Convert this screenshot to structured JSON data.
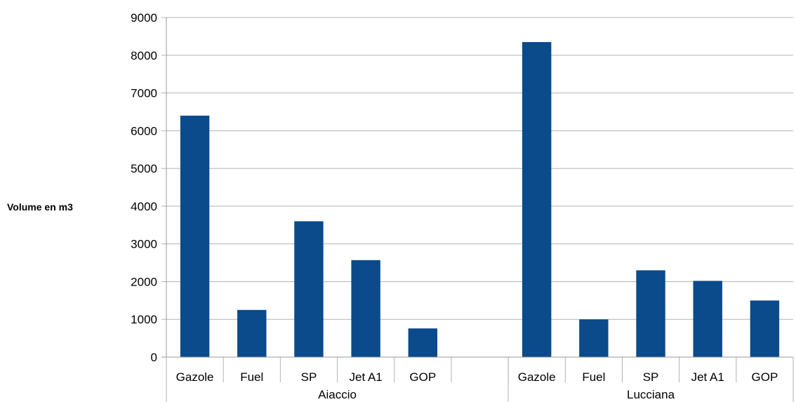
{
  "chart_data": {
    "type": "bar",
    "ylabel": "Volume en m3",
    "ylim": [
      0,
      9000
    ],
    "yticks": [
      0,
      1000,
      2000,
      3000,
      4000,
      5000,
      6000,
      7000,
      8000,
      9000
    ],
    "grid": true,
    "bar_color": "#0b4a8b",
    "groups": [
      {
        "name": "Aiaccio",
        "categories": [
          "Gazole",
          "Fuel",
          "SP",
          "Jet A1",
          "GOP",
          ""
        ],
        "values": [
          6400,
          1250,
          3600,
          2570,
          760,
          null
        ]
      },
      {
        "name": "Lucciana",
        "categories": [
          "Gazole",
          "Fuel",
          "SP",
          "Jet A1",
          "GOP"
        ],
        "values": [
          8350,
          1000,
          2300,
          2020,
          1500
        ]
      }
    ]
  }
}
